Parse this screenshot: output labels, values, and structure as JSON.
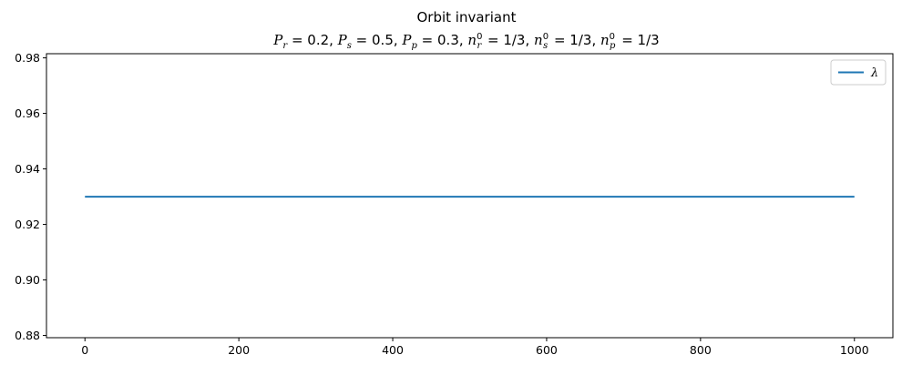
{
  "chart_data": {
    "type": "line",
    "title": "Orbit invariant",
    "subtitle": "P_r = 0.2, P_s = 0.5, P_p = 0.3, n_r^0 = 1/3, n_s^0 = 1/3, n_p^0 = 1/3",
    "subtitle_parts": {
      "pr": "P",
      "pr_sub": "r",
      "pr_val": " = 0.2, ",
      "ps": "P",
      "ps_sub": "s",
      "ps_val": " = 0.5, ",
      "pp": "P",
      "pp_sub": "p",
      "pp_val": " = 0.3, ",
      "nr": "n",
      "nr_sub": "r",
      "nr_sup": "0",
      "nr_val": " = 1/3, ",
      "ns": "n",
      "ns_sub": "s",
      "ns_sup": "0",
      "ns_val": " = 1/3, ",
      "np": "n",
      "np_sub": "p",
      "np_sup": "0",
      "np_val": " = 1/3"
    },
    "xlabel": "",
    "ylabel": "",
    "xlim": [
      -50,
      1050
    ],
    "ylim": [
      0.8792,
      0.9815
    ],
    "xticks": [
      0,
      200,
      400,
      600,
      800,
      1000
    ],
    "yticks": [
      0.88,
      0.9,
      0.92,
      0.94,
      0.96,
      0.98
    ],
    "xtick_labels": [
      "0",
      "200",
      "400",
      "600",
      "800",
      "1000"
    ],
    "ytick_labels": [
      "0.88",
      "0.90",
      "0.92",
      "0.94",
      "0.96",
      "0.98"
    ],
    "series": [
      {
        "name": "λ",
        "color": "#1f77b4",
        "x": [
          0,
          1000
        ],
        "y": [
          0.93,
          0.93
        ]
      }
    ],
    "legend": {
      "position": "top-right",
      "entries": [
        "λ"
      ]
    },
    "grid": false
  }
}
